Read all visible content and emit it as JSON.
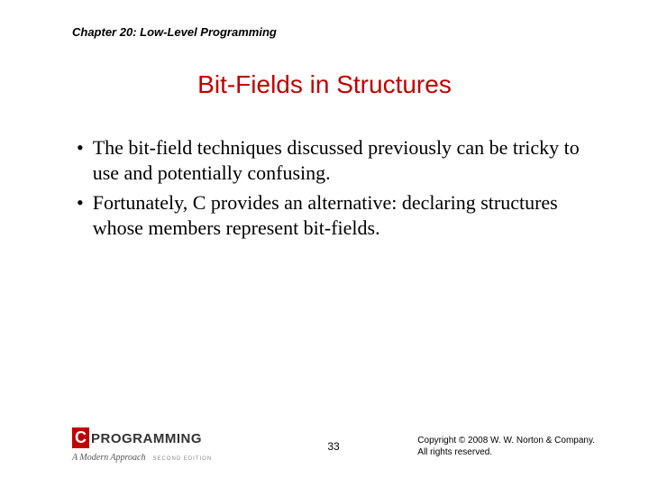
{
  "header": {
    "chapter_label": "Chapter 20: Low-Level Programming"
  },
  "title": {
    "text": "Bit-Fields in Structures",
    "color": "#c00000",
    "fontsize": 28
  },
  "bullets": [
    "The bit-field techniques discussed previously can be tricky to use and potentially confusing.",
    "Fortunately, C provides an alternative: declaring structures whose members represent bit-fields."
  ],
  "footer": {
    "logo": {
      "c_letter": "C",
      "main_text": "PROGRAMMING",
      "subtitle": "A Modern Approach",
      "edition": "SECOND EDITION",
      "c_bg_color": "#c00000"
    },
    "page_number": "33",
    "copyright_line1": "Copyright © 2008 W. W. Norton & Company.",
    "copyright_line2": "All rights reserved."
  },
  "colors": {
    "background": "#ffffff",
    "text": "#000000",
    "accent": "#c00000"
  }
}
